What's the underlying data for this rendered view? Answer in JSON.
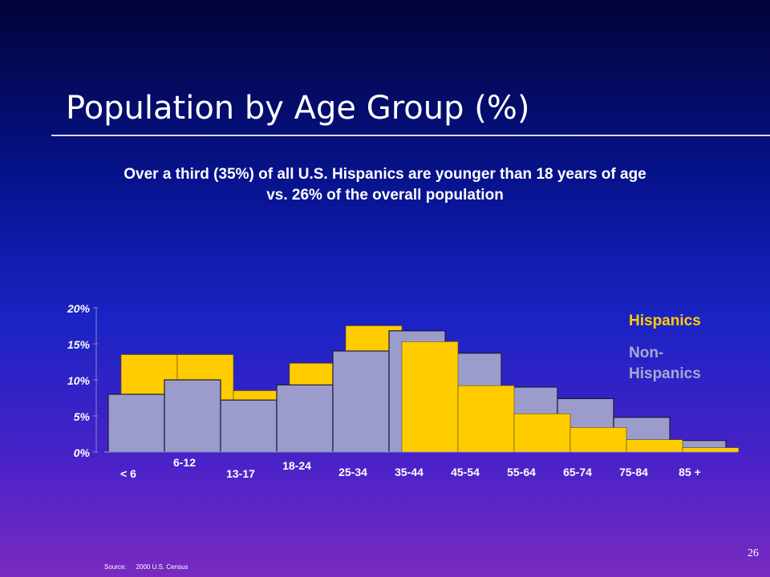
{
  "slide": {
    "title": "Population by Age Group (%)",
    "subtitle": "Over a third (35%) of all U.S. Hispanics are younger than 18 years of age vs. 26% of the overall population",
    "source_label": "Source:",
    "source_text": "2000 U.S. Census",
    "page_number": "26"
  },
  "chart_data": {
    "type": "bar",
    "categories": [
      "< 6",
      "6-12",
      "13-17",
      "18-24",
      "25-34",
      "35-44",
      "45-54",
      "55-64",
      "65-74",
      "75-84",
      "85 +"
    ],
    "series": [
      {
        "name": "Hispanics",
        "color": "#ffcc00",
        "values": [
          13.5,
          13.5,
          8.5,
          12.3,
          17.5,
          15.3,
          9.2,
          5.3,
          3.4,
          1.7,
          0.6
        ]
      },
      {
        "name": "Non-Hispanics",
        "color": "#9c9ccc",
        "values": [
          8.0,
          10.0,
          7.2,
          9.3,
          14.0,
          16.8,
          13.7,
          9.0,
          7.4,
          4.8,
          1.6
        ]
      }
    ],
    "yticks": [
      "0%",
      "5%",
      "10%",
      "15%",
      "20%"
    ],
    "ylim": [
      0,
      20
    ],
    "legend": [
      "Hispanics",
      "Non-Hispanics"
    ],
    "legend_position": "right"
  }
}
